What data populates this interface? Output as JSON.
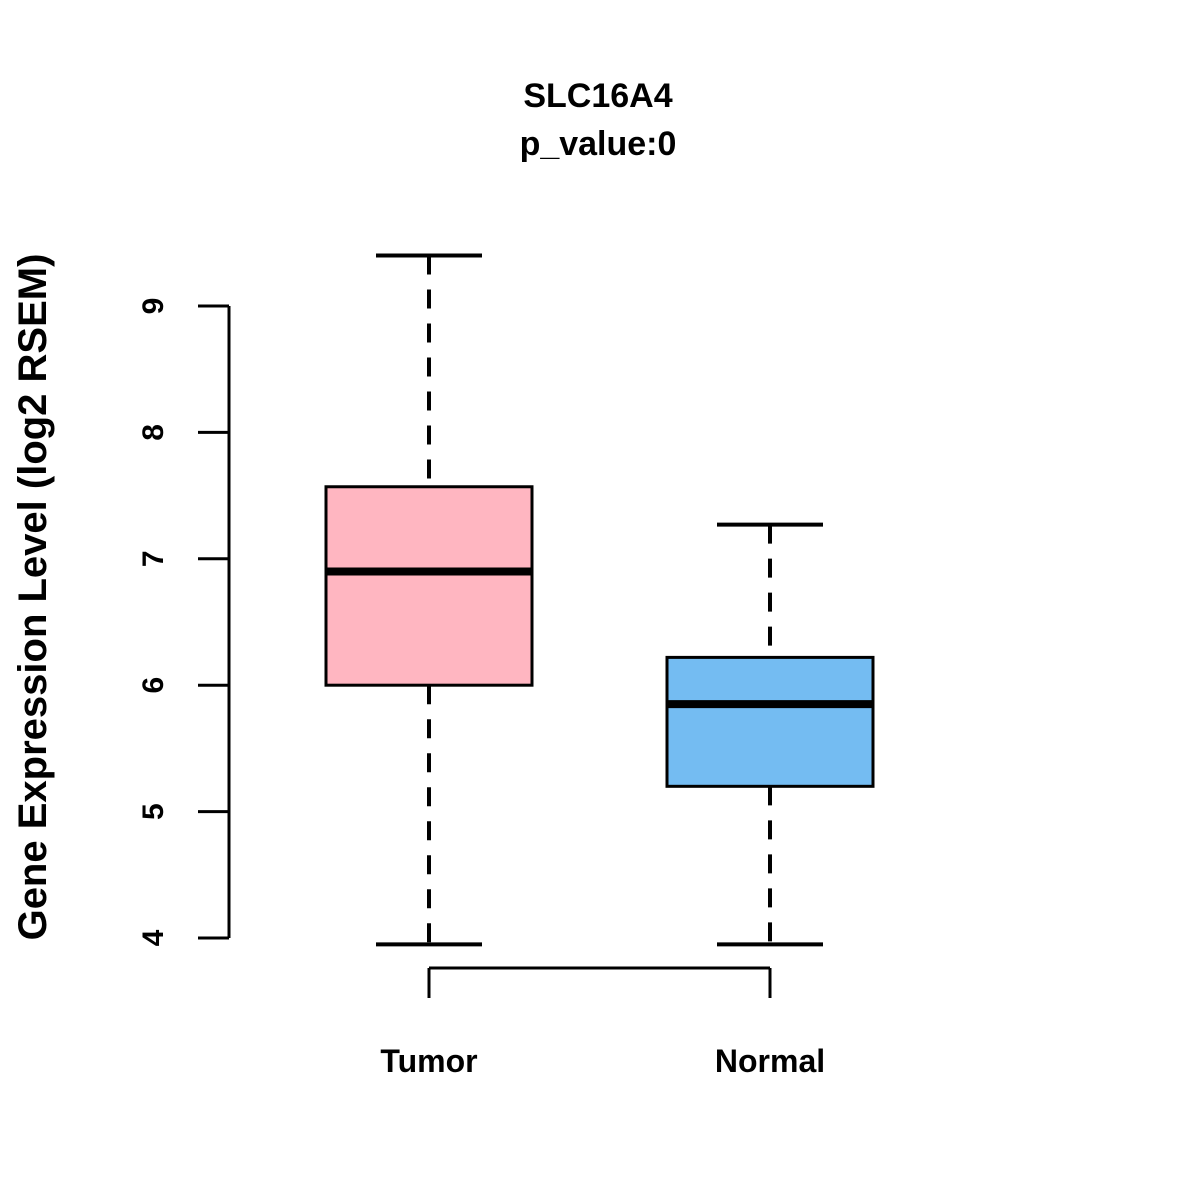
{
  "chart_data": {
    "type": "boxplot",
    "title": "SLC16A4",
    "subtitle": "p_value:0",
    "ylabel": "Gene Expression Level (log2 RSEM)",
    "xlabel": "",
    "categories": [
      "Tumor",
      "Normal"
    ],
    "yticks": [
      4,
      5,
      6,
      7,
      8,
      9
    ],
    "ylim": [
      3.6,
      9.6
    ],
    "grid": false,
    "legend": "none",
    "colors": {
      "tumor_fill": "#FFB6C1",
      "normal_fill": "#74BCF2",
      "stroke": "#000000",
      "background": "#ffffff"
    },
    "series": [
      {
        "name": "Tumor",
        "fill": "#FFB6C1",
        "lo": 3.95,
        "q1": 6.0,
        "median": 6.9,
        "q3": 7.57,
        "hi": 9.4,
        "outliers": []
      },
      {
        "name": "Normal",
        "fill": "#74BCF2",
        "lo": 3.95,
        "q1": 5.2,
        "median": 5.85,
        "q3": 6.22,
        "hi": 7.27,
        "outliers": []
      }
    ]
  }
}
